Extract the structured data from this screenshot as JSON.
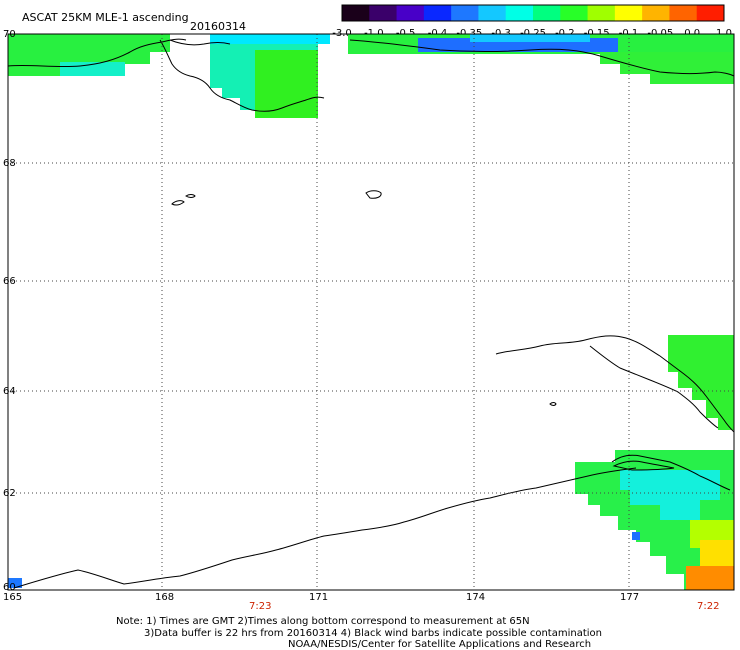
{
  "header": {
    "title": "ASCAT 25KM MLE-1 ascending",
    "date": "20160314"
  },
  "colorbar": {
    "tick_labels": [
      "-3.0",
      "-1.0",
      "-0.5",
      "-0.4",
      "-0.35",
      "-0.3",
      "-0.25",
      "-0.2",
      "-0.15",
      "-0.1",
      "-0.05",
      "0.0",
      "1.0"
    ],
    "colors": [
      "#1a001a",
      "#3a006a",
      "#4800c8",
      "#0a28ff",
      "#1e78ff",
      "#14c8ff",
      "#00ffe6",
      "#00ff80",
      "#28ff28",
      "#a0ff00",
      "#ffff00",
      "#ffb400",
      "#ff6400",
      "#ff1e00"
    ]
  },
  "map": {
    "lat_labels": [
      "70",
      "68",
      "66",
      "64",
      "62",
      "60"
    ],
    "lon_labels": [
      "165",
      "168",
      "171",
      "174",
      "177"
    ],
    "time_labels": [
      "7:23",
      "7:22"
    ],
    "time_color": "#cc2200",
    "grid_color": "#444444",
    "coast_color": "#000000"
  },
  "footer": {
    "line1": "Note: 1) Times are GMT 2)Times along bottom correspond to measurement at 65N",
    "line2": "3)Data buffer is 22 hrs from 20160314 4) Black wind barbs indicate possible contamination",
    "line3": "NOAA/NESDIS/Center for Satellite Applications and Research"
  }
}
